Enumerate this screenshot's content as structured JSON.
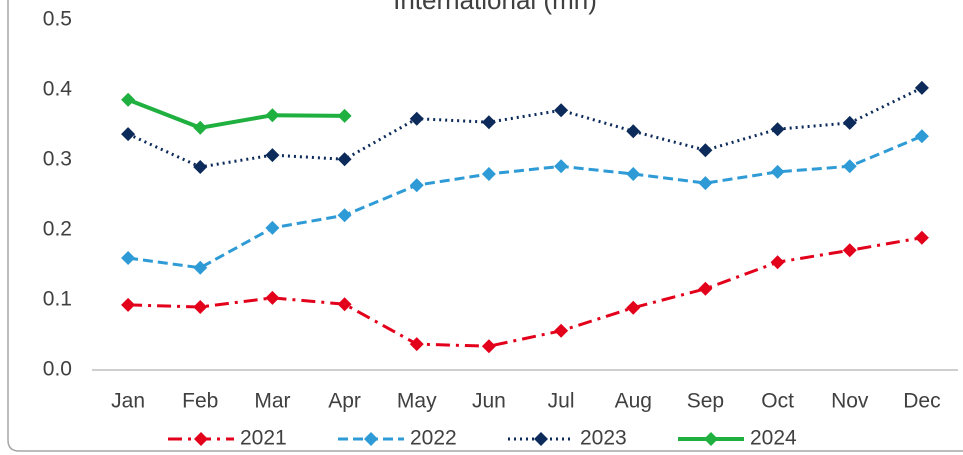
{
  "chart_data": {
    "type": "line",
    "title": "International (mn)",
    "categories": [
      "Jan",
      "Feb",
      "Mar",
      "Apr",
      "May",
      "Jun",
      "Jul",
      "Aug",
      "Sep",
      "Oct",
      "Nov",
      "Dec"
    ],
    "series": [
      {
        "name": "2021",
        "color": "#e3001b",
        "line_style": "dashdot",
        "values": [
          0.093,
          0.09,
          0.103,
          0.094,
          0.037,
          0.034,
          0.056,
          0.089,
          0.116,
          0.154,
          0.171,
          0.189
        ]
      },
      {
        "name": "2022",
        "color": "#2e9bd6",
        "line_style": "dashed",
        "values": [
          0.16,
          0.146,
          0.203,
          0.221,
          0.264,
          0.28,
          0.291,
          0.28,
          0.267,
          0.283,
          0.291,
          0.334
        ]
      },
      {
        "name": "2023",
        "color": "#0c2a5a",
        "line_style": "dotted",
        "values": [
          0.337,
          0.29,
          0.307,
          0.301,
          0.359,
          0.354,
          0.371,
          0.341,
          0.314,
          0.344,
          0.353,
          0.403
        ]
      },
      {
        "name": "2024",
        "color": "#1fb040",
        "line_style": "solid",
        "values": [
          0.386,
          0.346,
          0.364,
          0.363,
          null,
          null,
          null,
          null,
          null,
          null,
          null,
          null
        ]
      }
    ],
    "ylim": [
      0,
      0.5
    ],
    "yticks": [
      {
        "value": 0,
        "label": "0.0"
      },
      0.1,
      0.2,
      0.3,
      0.4,
      0.5
    ],
    "legend": "bottom"
  }
}
